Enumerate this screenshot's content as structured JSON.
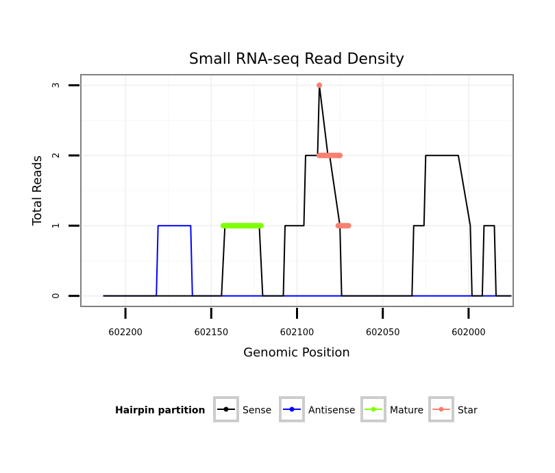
{
  "chart_data": {
    "type": "line",
    "title": "Small RNA-seq Read Density",
    "xlabel": "Genomic Position",
    "ylabel": "Total Reads",
    "x_reversed": true,
    "xlim": [
      602226,
      601974
    ],
    "ylim": [
      -0.15,
      3.15
    ],
    "x_ticks": [
      602200,
      602150,
      602100,
      602050,
      602000
    ],
    "x_tick_labels": [
      "602200",
      "602150",
      "602100",
      "602050",
      "602000"
    ],
    "y_ticks": [
      0,
      1,
      2,
      3
    ],
    "y_tick_labels": [
      "0",
      "1",
      "2",
      "3"
    ],
    "grid": true,
    "legend": {
      "title": "Hairpin partition",
      "position": "bottom",
      "entries": [
        {
          "label": "Sense",
          "color": "#000000"
        },
        {
          "label": "Antisense",
          "color": "#0000ff"
        },
        {
          "label": "Mature",
          "color": "#7fff00"
        },
        {
          "label": "Star",
          "color": "#fa8072"
        }
      ]
    },
    "series": [
      {
        "name": "Sense",
        "color": "#000000",
        "x": [
          602213,
          602144,
          602142,
          602122,
          602120,
          602108,
          602107,
          602096,
          602095,
          602088,
          602087,
          602082,
          602081,
          602075,
          602074,
          602033,
          602032,
          602026,
          602025,
          602018,
          602017,
          602007,
          602006,
          601999,
          601998,
          601992,
          601991,
          601985,
          601984,
          601975
        ],
        "y": [
          0,
          0,
          1,
          1,
          0,
          0,
          1,
          1,
          2,
          2,
          3,
          2,
          2,
          1,
          0,
          0,
          1,
          1,
          2,
          2,
          2,
          2,
          2,
          1,
          0,
          0,
          1,
          1,
          0,
          0
        ]
      },
      {
        "name": "Antisense",
        "color": "#0000ff",
        "x": [
          602213,
          602182,
          602181,
          602162,
          602161,
          601976
        ],
        "y": [
          0,
          0,
          1,
          1,
          0,
          0
        ]
      },
      {
        "name": "Mature",
        "color": "#7fff00",
        "x": [
          602143,
          602121
        ],
        "y": [
          1,
          1
        ]
      },
      {
        "name": "Star",
        "color": "#fa8072",
        "segments": [
          {
            "x": [
              602087,
              602075
            ],
            "y": [
              2,
              2
            ]
          },
          {
            "x": [
              602076,
              602070
            ],
            "y": [
              1,
              1
            ]
          }
        ],
        "points": [
          {
            "x": 602087,
            "y": 3
          }
        ]
      }
    ]
  }
}
